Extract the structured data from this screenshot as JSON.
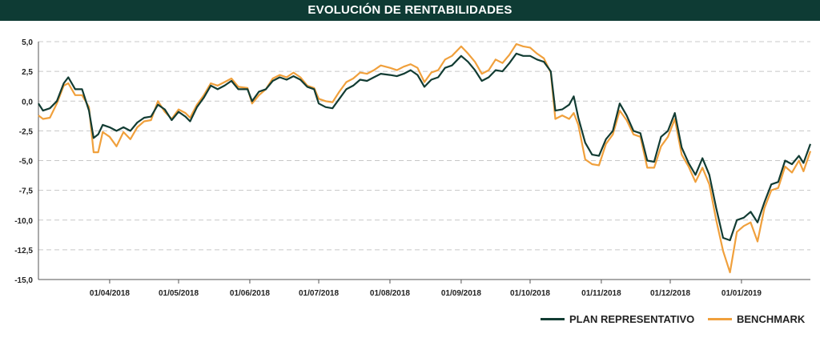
{
  "colors": {
    "header_bg": "#0e3b34",
    "plan": "#123c33",
    "benchmark": "#f0a03c",
    "grid": "#c8c8c8"
  },
  "chart_data": {
    "type": "line",
    "title": "EVOLUCIÓN DE RENTABILIDADES",
    "xlabel": "",
    "ylabel": "",
    "ylim": [
      -15.0,
      5.0
    ],
    "yticks": [
      "5,0",
      "2,5",
      "0,0",
      "-2,5",
      "-5,0",
      "-7,5",
      "-10,0",
      "-12,5",
      "-15,0"
    ],
    "xticks": [
      "01/04/2018",
      "01/05/2018",
      "01/06/2018",
      "01/07/2018",
      "01/08/2018",
      "01/09/2018",
      "01/10/2018",
      "01/11/2018",
      "01/12/2018",
      "01/01/2019"
    ],
    "x_tick_dates": [
      "2018-04-01",
      "2018-05-01",
      "2018-06-01",
      "2018-07-01",
      "2018-08-01",
      "2018-09-01",
      "2018-10-01",
      "2018-11-01",
      "2018-12-01",
      "2019-01-01"
    ],
    "xlim": [
      "2018-03-01",
      "2019-01-31"
    ],
    "grid": true,
    "legend_position": "bottom-right",
    "series": [
      {
        "name": "PLAN REPRESENTATIVO",
        "color": "#123c33",
        "points": [
          [
            "2018-03-01",
            -0.2
          ],
          [
            "2018-03-03",
            -0.8
          ],
          [
            "2018-03-06",
            -0.6
          ],
          [
            "2018-03-09",
            0.0
          ],
          [
            "2018-03-12",
            1.5
          ],
          [
            "2018-03-14",
            2.0
          ],
          [
            "2018-03-17",
            1.0
          ],
          [
            "2018-03-20",
            1.0
          ],
          [
            "2018-03-23",
            -0.8
          ],
          [
            "2018-03-25",
            -3.1
          ],
          [
            "2018-03-27",
            -2.8
          ],
          [
            "2018-03-29",
            -2.0
          ],
          [
            "2018-04-01",
            -2.2
          ],
          [
            "2018-04-04",
            -2.5
          ],
          [
            "2018-04-07",
            -2.2
          ],
          [
            "2018-04-10",
            -2.5
          ],
          [
            "2018-04-13",
            -1.8
          ],
          [
            "2018-04-16",
            -1.4
          ],
          [
            "2018-04-19",
            -1.3
          ],
          [
            "2018-04-22",
            -0.3
          ],
          [
            "2018-04-25",
            -0.7
          ],
          [
            "2018-04-28",
            -1.6
          ],
          [
            "2018-05-01",
            -0.9
          ],
          [
            "2018-05-04",
            -1.3
          ],
          [
            "2018-05-06",
            -1.7
          ],
          [
            "2018-05-09",
            -0.5
          ],
          [
            "2018-05-12",
            0.3
          ],
          [
            "2018-05-15",
            1.3
          ],
          [
            "2018-05-18",
            1.0
          ],
          [
            "2018-05-21",
            1.3
          ],
          [
            "2018-05-24",
            1.7
          ],
          [
            "2018-05-27",
            1.0
          ],
          [
            "2018-05-31",
            1.0
          ],
          [
            "2018-06-02",
            0.0
          ],
          [
            "2018-06-05",
            0.8
          ],
          [
            "2018-06-08",
            1.0
          ],
          [
            "2018-06-11",
            1.7
          ],
          [
            "2018-06-14",
            2.0
          ],
          [
            "2018-06-17",
            1.8
          ],
          [
            "2018-06-20",
            2.1
          ],
          [
            "2018-06-23",
            1.8
          ],
          [
            "2018-06-26",
            1.2
          ],
          [
            "2018-06-29",
            1.0
          ],
          [
            "2018-07-01",
            -0.2
          ],
          [
            "2018-07-04",
            -0.5
          ],
          [
            "2018-07-07",
            -0.6
          ],
          [
            "2018-07-10",
            0.2
          ],
          [
            "2018-07-13",
            1.0
          ],
          [
            "2018-07-16",
            1.3
          ],
          [
            "2018-07-19",
            1.8
          ],
          [
            "2018-07-22",
            1.7
          ],
          [
            "2018-07-25",
            2.0
          ],
          [
            "2018-07-28",
            2.3
          ],
          [
            "2018-08-01",
            2.2
          ],
          [
            "2018-08-04",
            2.1
          ],
          [
            "2018-08-07",
            2.3
          ],
          [
            "2018-08-10",
            2.6
          ],
          [
            "2018-08-13",
            2.2
          ],
          [
            "2018-08-16",
            1.2
          ],
          [
            "2018-08-19",
            1.8
          ],
          [
            "2018-08-22",
            2.0
          ],
          [
            "2018-08-25",
            2.8
          ],
          [
            "2018-08-28",
            3.0
          ],
          [
            "2018-09-01",
            3.8
          ],
          [
            "2018-09-04",
            3.3
          ],
          [
            "2018-09-07",
            2.6
          ],
          [
            "2018-09-10",
            1.7
          ],
          [
            "2018-09-13",
            2.0
          ],
          [
            "2018-09-16",
            2.6
          ],
          [
            "2018-09-19",
            2.5
          ],
          [
            "2018-09-22",
            3.2
          ],
          [
            "2018-09-25",
            4.0
          ],
          [
            "2018-09-28",
            3.8
          ],
          [
            "2018-10-01",
            3.8
          ],
          [
            "2018-10-04",
            3.5
          ],
          [
            "2018-10-07",
            3.3
          ],
          [
            "2018-10-10",
            2.5
          ],
          [
            "2018-10-12",
            -0.8
          ],
          [
            "2018-10-15",
            -0.7
          ],
          [
            "2018-10-18",
            -0.3
          ],
          [
            "2018-10-20",
            0.4
          ],
          [
            "2018-10-22",
            -1.4
          ],
          [
            "2018-10-25",
            -3.5
          ],
          [
            "2018-10-28",
            -4.5
          ],
          [
            "2018-10-31",
            -4.6
          ],
          [
            "2018-11-03",
            -3.2
          ],
          [
            "2018-11-06",
            -2.5
          ],
          [
            "2018-11-09",
            -0.2
          ],
          [
            "2018-11-12",
            -1.2
          ],
          [
            "2018-11-15",
            -2.5
          ],
          [
            "2018-11-18",
            -2.7
          ],
          [
            "2018-11-21",
            -5.0
          ],
          [
            "2018-11-24",
            -5.1
          ],
          [
            "2018-11-27",
            -3.0
          ],
          [
            "2018-11-30",
            -2.5
          ],
          [
            "2018-12-03",
            -1.0
          ],
          [
            "2018-12-06",
            -3.9
          ],
          [
            "2018-12-09",
            -5.2
          ],
          [
            "2018-12-12",
            -6.2
          ],
          [
            "2018-12-15",
            -4.8
          ],
          [
            "2018-12-18",
            -6.2
          ],
          [
            "2018-12-21",
            -9.0
          ],
          [
            "2018-12-24",
            -11.5
          ],
          [
            "2018-12-27",
            -11.7
          ],
          [
            "2018-12-30",
            -10.0
          ],
          [
            "2019-01-02",
            -9.8
          ],
          [
            "2019-01-05",
            -9.3
          ],
          [
            "2019-01-08",
            -10.2
          ],
          [
            "2019-01-11",
            -8.5
          ],
          [
            "2019-01-14",
            -7.0
          ],
          [
            "2019-01-17",
            -6.8
          ],
          [
            "2019-01-20",
            -5.0
          ],
          [
            "2019-01-23",
            -5.3
          ],
          [
            "2019-01-26",
            -4.6
          ],
          [
            "2019-01-28",
            -5.2
          ],
          [
            "2019-01-31",
            -3.6
          ]
        ]
      },
      {
        "name": "BENCHMARK",
        "color": "#f0a03c",
        "points": [
          [
            "2018-03-01",
            -1.2
          ],
          [
            "2018-03-03",
            -1.5
          ],
          [
            "2018-03-06",
            -1.4
          ],
          [
            "2018-03-09",
            -0.2
          ],
          [
            "2018-03-12",
            1.3
          ],
          [
            "2018-03-14",
            1.5
          ],
          [
            "2018-03-17",
            0.5
          ],
          [
            "2018-03-20",
            0.5
          ],
          [
            "2018-03-23",
            -0.5
          ],
          [
            "2018-03-25",
            -4.3
          ],
          [
            "2018-03-27",
            -4.3
          ],
          [
            "2018-03-29",
            -2.6
          ],
          [
            "2018-04-01",
            -3.0
          ],
          [
            "2018-04-04",
            -3.8
          ],
          [
            "2018-04-07",
            -2.6
          ],
          [
            "2018-04-10",
            -3.2
          ],
          [
            "2018-04-13",
            -2.2
          ],
          [
            "2018-04-16",
            -1.7
          ],
          [
            "2018-04-19",
            -1.6
          ],
          [
            "2018-04-22",
            0.0
          ],
          [
            "2018-04-25",
            -0.9
          ],
          [
            "2018-04-28",
            -1.5
          ],
          [
            "2018-05-01",
            -0.7
          ],
          [
            "2018-05-04",
            -1.0
          ],
          [
            "2018-05-06",
            -1.4
          ],
          [
            "2018-05-09",
            -0.3
          ],
          [
            "2018-05-12",
            0.5
          ],
          [
            "2018-05-15",
            1.5
          ],
          [
            "2018-05-18",
            1.3
          ],
          [
            "2018-05-21",
            1.6
          ],
          [
            "2018-05-24",
            1.9
          ],
          [
            "2018-05-27",
            1.2
          ],
          [
            "2018-05-31",
            1.1
          ],
          [
            "2018-06-02",
            -0.2
          ],
          [
            "2018-06-05",
            0.5
          ],
          [
            "2018-06-08",
            1.0
          ],
          [
            "2018-06-11",
            1.9
          ],
          [
            "2018-06-14",
            2.2
          ],
          [
            "2018-06-17",
            2.0
          ],
          [
            "2018-06-20",
            2.4
          ],
          [
            "2018-06-23",
            2.0
          ],
          [
            "2018-06-26",
            1.3
          ],
          [
            "2018-06-29",
            1.1
          ],
          [
            "2018-07-01",
            0.2
          ],
          [
            "2018-07-04",
            0.0
          ],
          [
            "2018-07-07",
            -0.1
          ],
          [
            "2018-07-10",
            0.8
          ],
          [
            "2018-07-13",
            1.6
          ],
          [
            "2018-07-16",
            1.9
          ],
          [
            "2018-07-19",
            2.4
          ],
          [
            "2018-07-22",
            2.3
          ],
          [
            "2018-07-25",
            2.6
          ],
          [
            "2018-07-28",
            3.0
          ],
          [
            "2018-08-01",
            2.8
          ],
          [
            "2018-08-04",
            2.6
          ],
          [
            "2018-08-07",
            2.9
          ],
          [
            "2018-08-10",
            3.1
          ],
          [
            "2018-08-13",
            2.8
          ],
          [
            "2018-08-16",
            1.6
          ],
          [
            "2018-08-19",
            2.4
          ],
          [
            "2018-08-22",
            2.6
          ],
          [
            "2018-08-25",
            3.5
          ],
          [
            "2018-08-28",
            3.8
          ],
          [
            "2018-09-01",
            4.6
          ],
          [
            "2018-09-04",
            4.0
          ],
          [
            "2018-09-07",
            3.3
          ],
          [
            "2018-09-10",
            2.3
          ],
          [
            "2018-09-13",
            2.6
          ],
          [
            "2018-09-16",
            3.5
          ],
          [
            "2018-09-19",
            3.2
          ],
          [
            "2018-09-22",
            3.9
          ],
          [
            "2018-09-25",
            4.8
          ],
          [
            "2018-09-28",
            4.6
          ],
          [
            "2018-10-01",
            4.5
          ],
          [
            "2018-10-04",
            4.0
          ],
          [
            "2018-10-07",
            3.6
          ],
          [
            "2018-10-10",
            2.4
          ],
          [
            "2018-10-12",
            -1.5
          ],
          [
            "2018-10-15",
            -1.2
          ],
          [
            "2018-10-18",
            -1.5
          ],
          [
            "2018-10-20",
            -1.0
          ],
          [
            "2018-10-22",
            -2.0
          ],
          [
            "2018-10-25",
            -4.9
          ],
          [
            "2018-10-28",
            -5.3
          ],
          [
            "2018-10-31",
            -5.4
          ],
          [
            "2018-11-03",
            -3.6
          ],
          [
            "2018-11-06",
            -2.8
          ],
          [
            "2018-11-09",
            -0.8
          ],
          [
            "2018-11-12",
            -1.6
          ],
          [
            "2018-11-15",
            -2.8
          ],
          [
            "2018-11-18",
            -3.0
          ],
          [
            "2018-11-21",
            -5.6
          ],
          [
            "2018-11-24",
            -5.6
          ],
          [
            "2018-11-27",
            -3.8
          ],
          [
            "2018-11-30",
            -3.0
          ],
          [
            "2018-12-03",
            -1.5
          ],
          [
            "2018-12-06",
            -4.5
          ],
          [
            "2018-12-09",
            -5.5
          ],
          [
            "2018-12-12",
            -6.8
          ],
          [
            "2018-12-15",
            -5.6
          ],
          [
            "2018-12-18",
            -7.0
          ],
          [
            "2018-12-21",
            -10.0
          ],
          [
            "2018-12-24",
            -12.6
          ],
          [
            "2018-12-27",
            -14.4
          ],
          [
            "2018-12-30",
            -11.0
          ],
          [
            "2019-01-02",
            -10.5
          ],
          [
            "2019-01-05",
            -10.2
          ],
          [
            "2019-01-08",
            -11.8
          ],
          [
            "2019-01-11",
            -9.0
          ],
          [
            "2019-01-14",
            -7.5
          ],
          [
            "2019-01-17",
            -7.3
          ],
          [
            "2019-01-20",
            -5.5
          ],
          [
            "2019-01-23",
            -6.0
          ],
          [
            "2019-01-26",
            -5.0
          ],
          [
            "2019-01-28",
            -5.9
          ],
          [
            "2019-01-31",
            -4.2
          ]
        ]
      }
    ]
  },
  "legend": {
    "items": [
      "PLAN REPRESENTATIVO",
      "BENCHMARK"
    ]
  }
}
